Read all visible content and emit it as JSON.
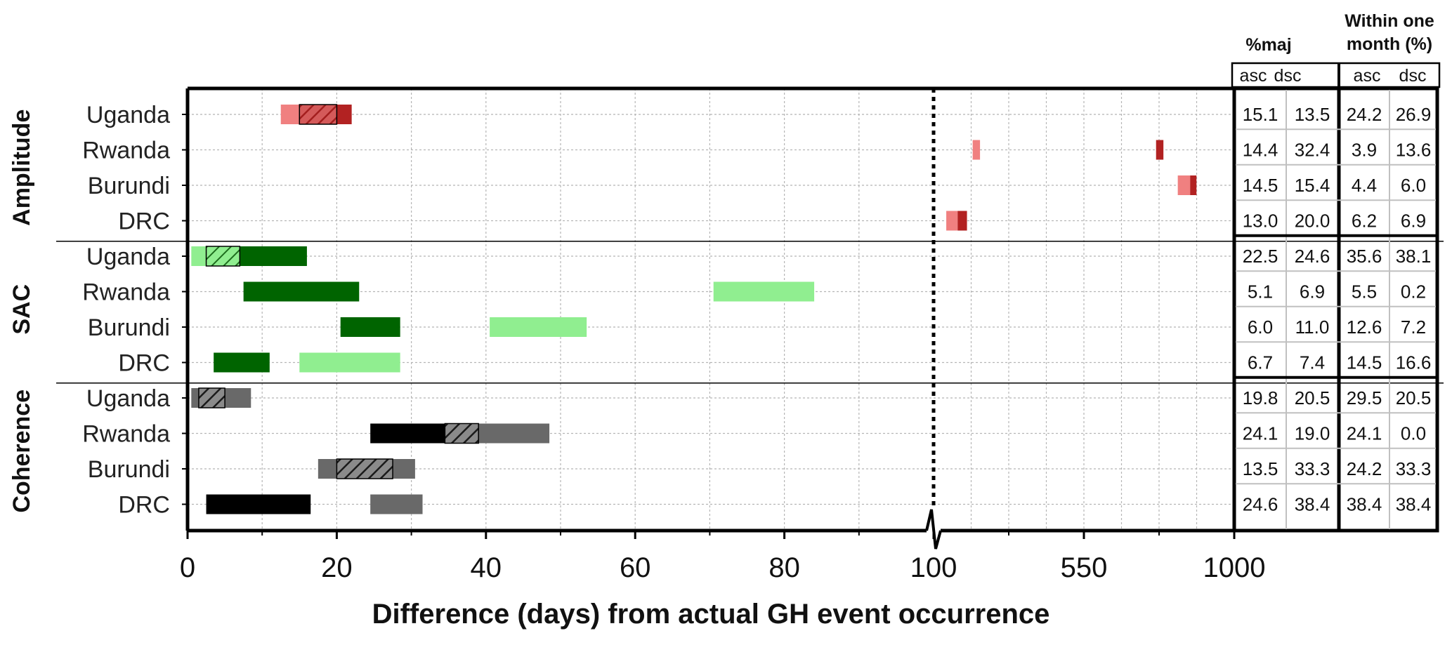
{
  "chart_data": {
    "type": "bar",
    "subtype": "horizontal floating range bars, broken x-axis",
    "xlabel": "Difference (days) from actual GH event occurrence",
    "x_tick_labels": [
      "0",
      "20",
      "40",
      "60",
      "80",
      "100",
      "550",
      "1000"
    ],
    "x_axis_break": "between 0–100 and 100–1000 segments",
    "grid": true,
    "groups": [
      {
        "name": "Amplitude",
        "light_color": "#f08080",
        "dark_color": "#b22222",
        "rows": [
          {
            "label": "Uganda",
            "light": [
              12.5,
              15
            ],
            "dark": [
              15,
              22
            ],
            "hatched": [
              15,
              20
            ],
            "table": [
              "15.1",
              "13.5",
              "24.2",
              "26.9"
            ]
          },
          {
            "label": "Rwanda",
            "light": [
              217,
              239
            ],
            "dark": [
              766,
              788
            ],
            "hatched": null,
            "table": [
              "14.4",
              "32.4",
              "3.9",
              "13.6"
            ]
          },
          {
            "label": "Burundi",
            "light": [
              831,
              868
            ],
            "dark": [
              868,
              887
            ],
            "hatched": null,
            "table": [
              "14.5",
              "15.4",
              "4.4",
              "6.0"
            ]
          },
          {
            "label": "DRC",
            "light": [
              138,
              172
            ],
            "dark": [
              172,
              200
            ],
            "hatched": null,
            "table": [
              "13.0",
              "20.0",
              "6.2",
              "6.9"
            ]
          }
        ]
      },
      {
        "name": "SAC",
        "light_color": "#90ee90",
        "dark_color": "#006400",
        "rows": [
          {
            "label": "Uganda",
            "light": [
              0.5,
              2.5
            ],
            "dark": [
              2.5,
              16
            ],
            "hatched": [
              2.5,
              7
            ],
            "table": [
              "22.5",
              "24.6",
              "35.6",
              "38.1"
            ]
          },
          {
            "label": "Rwanda",
            "light": [
              70.5,
              84
            ],
            "dark": [
              7.5,
              23
            ],
            "hatched": null,
            "table": [
              "5.1",
              "6.9",
              "5.5",
              "0.2"
            ]
          },
          {
            "label": "Burundi",
            "light": [
              40.5,
              53.5
            ],
            "dark": [
              20.5,
              28.5
            ],
            "hatched": null,
            "table": [
              "6.0",
              "11.0",
              "12.6",
              "7.2"
            ]
          },
          {
            "label": "DRC",
            "light": [
              15,
              28.5
            ],
            "dark": [
              3.5,
              11
            ],
            "hatched": null,
            "table": [
              "6.7",
              "7.4",
              "14.5",
              "16.6"
            ]
          }
        ]
      },
      {
        "name": "Coherence",
        "light_color": "#696969",
        "dark_color": "#000000",
        "rows": [
          {
            "label": "Uganda",
            "light": [
              0.5,
              8.5
            ],
            "dark": [
              1.5,
              5
            ],
            "hatched": [
              1.5,
              5
            ],
            "table": [
              "19.8",
              "20.5",
              "29.5",
              "20.5"
            ]
          },
          {
            "label": "Rwanda",
            "light": [
              34.5,
              48.5
            ],
            "dark": [
              24.5,
              39
            ],
            "hatched": [
              34.5,
              39
            ],
            "table": [
              "24.1",
              "19.0",
              "24.1",
              "0.0"
            ]
          },
          {
            "label": "Burundi",
            "light": [
              17.5,
              30.5
            ],
            "dark": [
              20,
              27.5
            ],
            "hatched": [
              20,
              27.5
            ],
            "table": [
              "13.5",
              "33.3",
              "24.2",
              "33.3"
            ]
          },
          {
            "label": "DRC",
            "light": [
              24.5,
              31.5
            ],
            "dark": [
              2.5,
              16.5
            ],
            "hatched": null,
            "table": [
              "24.6",
              "38.4",
              "38.4",
              "38.4"
            ]
          }
        ]
      }
    ],
    "table": {
      "header_1": "%maj",
      "header_2_line1": "Within one",
      "header_2_line2": "month (%)",
      "subheaders": [
        "asc",
        "dsc",
        "asc",
        "dsc"
      ]
    }
  }
}
